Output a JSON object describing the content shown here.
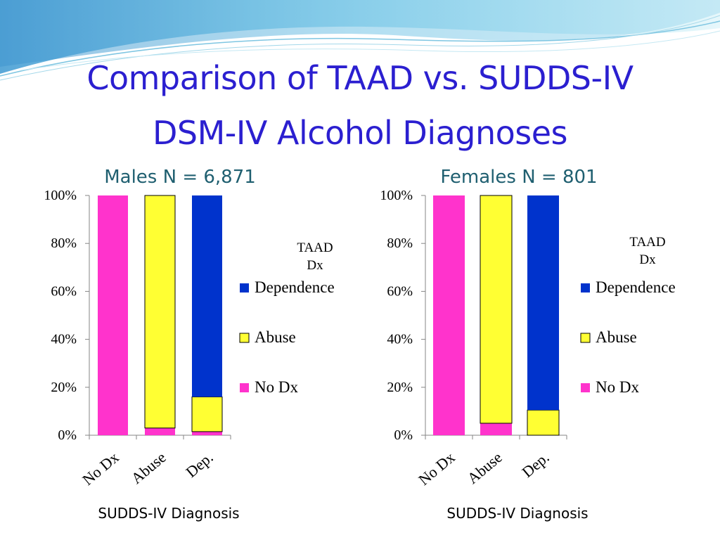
{
  "slide": {
    "title_line1": "Comparison of TAAD vs. SUDDS-IV",
    "title_line2": "DSM-IV Alcohol Diagnoses"
  },
  "colors": {
    "no_dx": "#ff33cc",
    "abuse": "#ffff33",
    "dependence": "#0033cc",
    "title": "#2b1fd0",
    "subtitle": "#1f5f70"
  },
  "chart_data": [
    {
      "type": "bar",
      "stacked": true,
      "title": "Males  N = 6,871",
      "xlabel": "SUDDS-IV Diagnosis",
      "ylabel": "",
      "legend_title": "TAAD Dx",
      "legend_position": "right",
      "yticks": [
        "0%",
        "20%",
        "40%",
        "60%",
        "80%",
        "100%"
      ],
      "ylim": [
        0,
        100
      ],
      "categories": [
        "No Dx",
        "Abuse",
        "Dep."
      ],
      "series": [
        {
          "name": "No Dx",
          "color": "#ff33cc",
          "values": [
            100,
            3,
            1.5
          ]
        },
        {
          "name": "Abuse",
          "color": "#ffff33",
          "values": [
            0,
            97,
            14.5
          ]
        },
        {
          "name": "Dependence",
          "color": "#0033cc",
          "values": [
            0,
            0,
            84
          ]
        }
      ]
    },
    {
      "type": "bar",
      "stacked": true,
      "title": "Females  N = 801",
      "xlabel": "SUDDS-IV Diagnosis",
      "ylabel": "",
      "legend_title": "TAAD Dx",
      "legend_position": "right",
      "yticks": [
        "0%",
        "20%",
        "40%",
        "60%",
        "80%",
        "100%"
      ],
      "ylim": [
        0,
        100
      ],
      "categories": [
        "No Dx",
        "Abuse",
        "Dep."
      ],
      "series": [
        {
          "name": "No Dx",
          "color": "#ff33cc",
          "values": [
            100,
            5,
            0
          ]
        },
        {
          "name": "Abuse",
          "color": "#ffff33",
          "values": [
            0,
            95,
            10.5
          ]
        },
        {
          "name": "Dependence",
          "color": "#0033cc",
          "values": [
            0,
            0,
            89.5
          ]
        }
      ]
    }
  ]
}
